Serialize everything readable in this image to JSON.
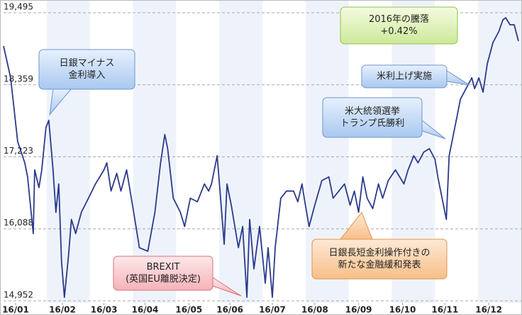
{
  "chart_data": {
    "type": "line",
    "x": [
      0,
      5,
      10,
      15,
      17,
      21,
      22,
      25,
      27,
      30,
      32,
      35,
      37,
      39,
      41,
      43,
      46,
      48,
      51,
      55,
      60,
      65,
      71,
      73,
      76,
      80,
      83,
      87,
      92,
      96,
      102,
      107,
      111,
      114,
      116,
      120,
      125,
      128,
      132,
      137,
      142,
      145,
      147,
      151,
      153,
      156,
      158,
      161,
      166,
      169,
      172,
      174,
      177,
      181,
      185,
      187,
      190,
      192,
      196,
      200,
      205,
      208,
      211,
      213,
      216,
      220,
      225,
      230,
      233,
      237,
      241,
      245,
      248,
      251,
      254,
      257,
      261,
      265,
      268,
      272,
      277,
      280,
      283,
      286,
      290,
      293,
      297,
      301,
      305,
      307,
      313,
      315,
      317,
      320,
      323,
      327,
      331,
      333,
      336,
      339,
      342,
      346,
      350,
      353,
      355,
      358,
      361,
      364
    ],
    "values": [
      18970,
      18468,
      17464,
      17129,
      16906,
      16013,
      17017,
      16738,
      17017,
      17687,
      17799,
      17017,
      16348,
      16795,
      15566,
      15008,
      15678,
      16236,
      16013,
      16348,
      16571,
      16795,
      17017,
      17129,
      16683,
      16962,
      16683,
      17017,
      16348,
      15790,
      15734,
      16348,
      17129,
      17575,
      17352,
      16571,
      16348,
      16124,
      16571,
      16515,
      16795,
      16683,
      16795,
      17240,
      16683,
      15845,
      16795,
      16460,
      15790,
      16124,
      15008,
      16236,
      15455,
      16124,
      15231,
      15790,
      15008,
      15790,
      16571,
      16683,
      16683,
      16515,
      16795,
      16515,
      16124,
      16460,
      16850,
      16906,
      16571,
      16683,
      16795,
      16460,
      16683,
      16348,
      16906,
      16571,
      16406,
      16795,
      16571,
      16850,
      17017,
      16906,
      16795,
      17017,
      17240,
      17129,
      17296,
      17352,
      17185,
      16906,
      16236,
      17240,
      17464,
      17799,
      18133,
      18300,
      18468,
      18300,
      18468,
      18244,
      18691,
      19026,
      19194,
      19383,
      19417,
      19305,
      19305,
      19048
    ],
    "color": "#2b3a8c",
    "xlim": [
      0,
      366
    ],
    "xticks": [
      {
        "value": 8.5,
        "label": "16/01"
      },
      {
        "value": 41.6,
        "label": "16/02"
      },
      {
        "value": 71,
        "label": "16/03"
      },
      {
        "value": 100,
        "label": "16/04"
      },
      {
        "value": 131,
        "label": "16/05"
      },
      {
        "value": 160,
        "label": "16/06"
      },
      {
        "value": 190,
        "label": "16/07"
      },
      {
        "value": 220,
        "label": "16/08"
      },
      {
        "value": 251,
        "label": "16/09"
      },
      {
        "value": 282,
        "label": "16/10"
      },
      {
        "value": 312,
        "label": "16/11"
      },
      {
        "value": 343,
        "label": "16/12"
      }
    ],
    "ylim": [
      14952,
      19495
    ],
    "yticks": [
      {
        "value": 14952,
        "label": "14,952"
      },
      {
        "value": 16088,
        "label": "16,088"
      },
      {
        "value": 17223,
        "label": "17,223"
      },
      {
        "value": 18359,
        "label": "18,359"
      },
      {
        "value": 19495,
        "label": "19,495"
      }
    ],
    "grid": true,
    "annotations": [
      {
        "text": [
          "日銀マイナス",
          "金利導入"
        ]
      },
      {
        "text": [
          "2016年の騰落",
          "+0.42%"
        ]
      },
      {
        "text": [
          "米利上げ実施"
        ]
      },
      {
        "text": [
          "米大統領選挙",
          "トランプ氏勝利"
        ]
      },
      {
        "text": [
          "BREXIT",
          "(英国EU離脱決定)"
        ]
      },
      {
        "text": [
          "日銀長短金利操作付きの",
          "新たな金融緩和発表"
        ]
      }
    ]
  }
}
